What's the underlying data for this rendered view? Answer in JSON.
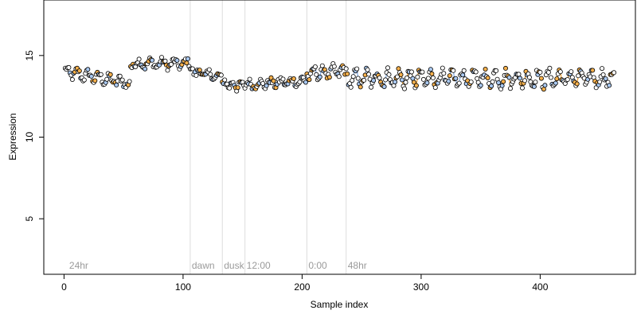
{
  "chart_data": {
    "type": "scatter",
    "title": "",
    "xlabel": "Sample index",
    "ylabel": "Expression",
    "xlim": [
      -17,
      480
    ],
    "ylim": [
      1.6,
      18.4
    ],
    "xticks": [
      0,
      100,
      200,
      300,
      400
    ],
    "yticks": [
      5,
      10,
      15
    ],
    "grid": false,
    "colors": {
      "light_blue": "#a9c8f0",
      "orange": "#f5b04c",
      "white": "#ffffff",
      "connector_blue": "#8fb4e8",
      "connector_orange": "#f0a844",
      "vline": "#dddddd",
      "annotation": "#9a9a9a"
    },
    "annotations": [
      {
        "label": "24hr",
        "x": 3
      },
      {
        "label": "dawn",
        "x": 106
      },
      {
        "label": "dusk",
        "x": 133
      },
      {
        "label": "12:00",
        "x": 152
      },
      {
        "label": "0:00",
        "x": 204
      },
      {
        "label": "48hr",
        "x": 237
      }
    ],
    "vertical_lines": [
      106,
      133,
      152,
      204,
      237
    ],
    "segments": [
      {
        "x_start": 1,
        "x_end": 55,
        "base": 14.0,
        "slope": -0.013,
        "amp": 0.25,
        "period": 9,
        "noise": 0.22
      },
      {
        "x_start": 56,
        "x_end": 105,
        "base": 14.5,
        "slope": 0.0,
        "amp": 0.22,
        "period": 10,
        "noise": 0.2
      },
      {
        "x_start": 106,
        "x_end": 132,
        "base": 14.1,
        "slope": -0.018,
        "amp": 0.18,
        "period": 8,
        "noise": 0.2
      },
      {
        "x_start": 133,
        "x_end": 151,
        "base": 13.3,
        "slope": -0.01,
        "amp": 0.2,
        "period": 7,
        "noise": 0.22
      },
      {
        "x_start": 152,
        "x_end": 203,
        "base": 13.2,
        "slope": 0.005,
        "amp": 0.2,
        "period": 9,
        "noise": 0.2
      },
      {
        "x_start": 204,
        "x_end": 236,
        "base": 13.9,
        "slope": 0.004,
        "amp": 0.3,
        "period": 8,
        "noise": 0.22
      },
      {
        "x_start": 237,
        "x_end": 462,
        "base": 13.6,
        "slope": 0.0,
        "amp": 0.45,
        "period": 9,
        "noise": 0.25
      }
    ],
    "point_color_cycle": [
      "white",
      "light_blue",
      "white",
      "orange",
      "white",
      "light_blue",
      "white",
      "white",
      "orange",
      "light_blue"
    ],
    "connectors": [
      {
        "x_start": 153,
        "x_end": 165,
        "color": "connector_blue"
      },
      {
        "x_start": 203,
        "x_end": 216,
        "color": "connector_blue"
      },
      {
        "x_start": 242,
        "x_end": 272,
        "color": "connector_blue"
      },
      {
        "x_start": 282,
        "x_end": 300,
        "color": "connector_orange"
      },
      {
        "x_start": 322,
        "x_end": 340,
        "color": "connector_blue"
      },
      {
        "x_start": 372,
        "x_end": 392,
        "color": "connector_orange"
      },
      {
        "x_start": 412,
        "x_end": 440,
        "color": "connector_orange"
      }
    ]
  }
}
